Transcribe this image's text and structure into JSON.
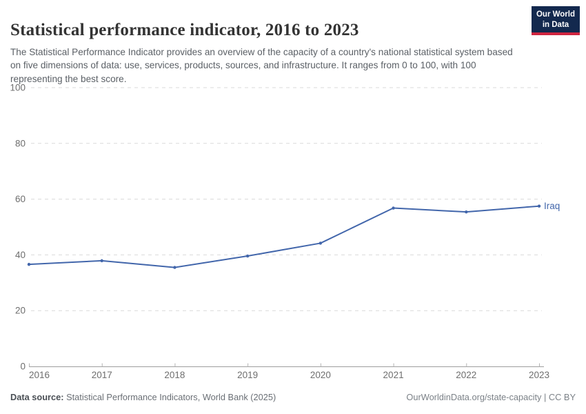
{
  "header": {
    "title": "Statistical performance indicator, 2016 to 2023",
    "subtitle": "The Statistical Performance Indicator provides an overview of the capacity of a country's national statistical system based on five dimensions of data: use, services, products, sources, and infrastructure. It ranges from 0 to 100, with 100 representing the best score.",
    "logo": {
      "line1": "Our World",
      "line2": "in Data",
      "bg_color": "#13294e",
      "accent_color": "#cf2540"
    }
  },
  "chart_data": {
    "type": "line",
    "title": "Statistical performance indicator, 2016 to 2023",
    "x": [
      2016,
      2017,
      2018,
      2019,
      2020,
      2021,
      2022,
      2023
    ],
    "series": [
      {
        "name": "Iraq",
        "color": "#4266ab",
        "values": [
          36.6,
          37.9,
          35.5,
          39.6,
          44.2,
          56.8,
          55.4,
          57.5
        ]
      }
    ],
    "xlabel": "",
    "ylabel": "",
    "ylim": [
      0,
      100
    ],
    "yticks": [
      0,
      20,
      40,
      60,
      80,
      100
    ],
    "grid": "horizontal-dashed",
    "legend_position": "end-of-line-label",
    "colors": {
      "gridline": "#d9d9d9",
      "axis_line": "#9e9e9e",
      "tick_mark": "#b3b3b3",
      "tick_label": "#6e6e6e"
    }
  },
  "footer": {
    "source_label": "Data source:",
    "source_text": "Statistical Performance Indicators, World Bank (2025)",
    "link_text": "OurWorldinData.org/state-capacity | CC BY"
  }
}
